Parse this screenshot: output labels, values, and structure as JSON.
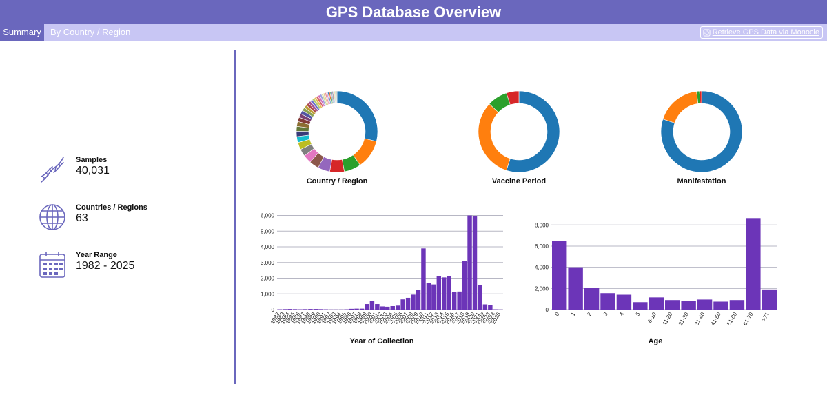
{
  "header": {
    "title": "GPS Database Overview"
  },
  "tabs": {
    "summary": "Summary",
    "by_country": "By Country / Region"
  },
  "retrieve_link": "Retrieve GPS Data via Monocle",
  "stats": [
    {
      "label": "Samples",
      "value": "40,031",
      "icon": "dna-icon"
    },
    {
      "label": "Countries / Regions",
      "value": "63",
      "icon": "globe-icon"
    },
    {
      "label": "Year Range",
      "value": "1982 - 2025",
      "icon": "calendar-icon"
    }
  ],
  "colors": {
    "accent": "#6a67bd",
    "tabbar": "#c8c6f4",
    "bar": "#6c35b8"
  },
  "chart_data": [
    {
      "type": "pie",
      "title": "Country / Region",
      "slices": [
        {
          "value": 30,
          "color": "#1f77b4"
        },
        {
          "value": 12,
          "color": "#ff7f0e"
        },
        {
          "value": 7,
          "color": "#2ca02c"
        },
        {
          "value": 6,
          "color": "#d62728"
        },
        {
          "value": 5,
          "color": "#9467bd"
        },
        {
          "value": 4,
          "color": "#8c564b"
        },
        {
          "value": 3.5,
          "color": "#e377c2"
        },
        {
          "value": 3,
          "color": "#7f7f7f"
        },
        {
          "value": 3,
          "color": "#bcbd22"
        },
        {
          "value": 2.5,
          "color": "#17becf"
        },
        {
          "value": 2.2,
          "color": "#393b79"
        },
        {
          "value": 2,
          "color": "#637939"
        },
        {
          "value": 2,
          "color": "#8c6d31"
        },
        {
          "value": 1.8,
          "color": "#843c39"
        },
        {
          "value": 1.6,
          "color": "#7b4173"
        },
        {
          "value": 1.5,
          "color": "#5254a3"
        },
        {
          "value": 1.4,
          "color": "#8ca252"
        },
        {
          "value": 1.3,
          "color": "#bd9e39"
        },
        {
          "value": 1.2,
          "color": "#ad494a"
        },
        {
          "value": 1.1,
          "color": "#a55194"
        },
        {
          "value": 1,
          "color": "#6b6ecf"
        },
        {
          "value": 1,
          "color": "#b5cf6b"
        },
        {
          "value": 0.9,
          "color": "#e7ba52"
        },
        {
          "value": 0.9,
          "color": "#d6616b"
        },
        {
          "value": 0.8,
          "color": "#ce6dbd"
        },
        {
          "value": 0.8,
          "color": "#9c9ede"
        },
        {
          "value": 0.7,
          "color": "#cedb9c"
        },
        {
          "value": 0.7,
          "color": "#e7cb94"
        },
        {
          "value": 0.6,
          "color": "#e7969c"
        },
        {
          "value": 0.6,
          "color": "#de9ed6"
        },
        {
          "value": 0.5,
          "color": "#3182bd"
        },
        {
          "value": 0.5,
          "color": "#e6550d"
        },
        {
          "value": 0.5,
          "color": "#31a354"
        },
        {
          "value": 0.4,
          "color": "#756bb1"
        },
        {
          "value": 0.4,
          "color": "#636363"
        },
        {
          "value": 0.4,
          "color": "#6baed6"
        },
        {
          "value": 0.3,
          "color": "#fd8d3c"
        },
        {
          "value": 0.3,
          "color": "#74c476"
        },
        {
          "value": 0.3,
          "color": "#9e9ac8"
        },
        {
          "value": 0.3,
          "color": "#969696"
        }
      ]
    },
    {
      "type": "pie",
      "title": "Vaccine Period",
      "slices": [
        {
          "value": 55,
          "color": "#1f77b4"
        },
        {
          "value": 32,
          "color": "#ff7f0e"
        },
        {
          "value": 8,
          "color": "#2ca02c"
        },
        {
          "value": 5,
          "color": "#d62728"
        }
      ]
    },
    {
      "type": "pie",
      "title": "Manifestation",
      "slices": [
        {
          "value": 80,
          "color": "#1f77b4"
        },
        {
          "value": 18,
          "color": "#ff7f0e"
        },
        {
          "value": 1.2,
          "color": "#2ca02c"
        },
        {
          "value": 0.8,
          "color": "#d62728"
        }
      ]
    },
    {
      "type": "bar",
      "title": "Year of Collection",
      "categories": [
        "1982",
        "1983",
        "1984",
        "1985",
        "1986",
        "1987",
        "1988",
        "1989",
        "1990",
        "1991",
        "1992",
        "1993",
        "1994",
        "1995",
        "1996",
        "1997",
        "1998",
        "1999",
        "2000",
        "2001",
        "2002",
        "2003",
        "2004",
        "2005",
        "2006",
        "2007",
        "2008",
        "2009",
        "2010",
        "2011",
        "2012",
        "2013",
        "2014",
        "2015",
        "2016",
        "2017",
        "2018",
        "2019",
        "2020",
        "2021",
        "2022",
        "2023",
        "2024",
        "2025"
      ],
      "values": [
        20,
        30,
        40,
        30,
        20,
        30,
        40,
        40,
        30,
        20,
        10,
        10,
        10,
        20,
        50,
        60,
        60,
        350,
        550,
        350,
        200,
        180,
        220,
        250,
        650,
        750,
        950,
        1250,
        3900,
        1700,
        1600,
        2150,
        2050,
        2150,
        1100,
        1150,
        3100,
        6000,
        5950,
        1550,
        330,
        280,
        20,
        10
      ],
      "ylim": [
        0,
        6200
      ],
      "yticks": [
        0,
        1000,
        2000,
        3000,
        4000,
        5000,
        6000
      ],
      "ytick_labels": [
        "0",
        "1,000",
        "2,000",
        "3,000",
        "4,000",
        "5,000",
        "6,000"
      ]
    },
    {
      "type": "bar",
      "title": "Age",
      "categories": [
        "0",
        "1",
        "2",
        "3",
        "4",
        "5",
        "6-10",
        "11-20",
        "21-30",
        "31-40",
        "41-50",
        "51-60",
        "61-70",
        ">71"
      ],
      "values": [
        6500,
        4000,
        2050,
        1550,
        1400,
        700,
        1150,
        900,
        800,
        950,
        750,
        900,
        8650,
        1900
      ],
      "ylim": [
        0,
        8800
      ],
      "yticks": [
        0,
        2000,
        4000,
        6000,
        8000
      ],
      "ytick_labels": [
        "0",
        "2,000",
        "4,000",
        "6,000",
        "8,000"
      ]
    }
  ]
}
